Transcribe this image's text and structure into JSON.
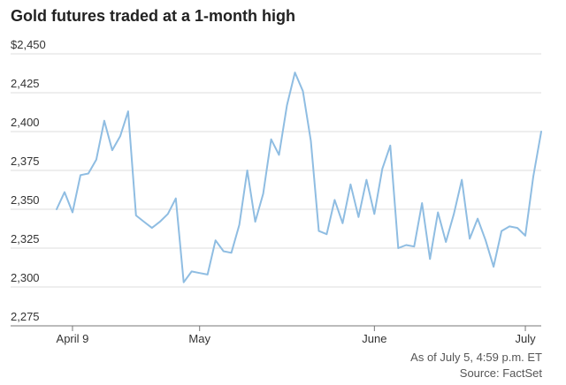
{
  "chart_data": {
    "type": "line",
    "title": "Gold futures traded at a 1-month high",
    "xlabel": "",
    "ylabel": "",
    "ylim": [
      2275,
      2450
    ],
    "yticks": [
      "$2,450",
      "2,425",
      "2,400",
      "2,375",
      "2,350",
      "2,325",
      "2,300",
      "2,275"
    ],
    "ytick_values": [
      2450,
      2425,
      2400,
      2375,
      2350,
      2325,
      2300,
      2275
    ],
    "xticks": [
      {
        "label": "April 9",
        "index": 2
      },
      {
        "label": "May",
        "index": 18
      },
      {
        "label": "June",
        "index": 40
      },
      {
        "label": "July",
        "index": 59
      }
    ],
    "grid": true,
    "series": [
      {
        "values": [
          2350,
          2361,
          2348,
          2372,
          2373,
          2382,
          2407,
          2388,
          2397,
          2413,
          2346,
          2342,
          2338,
          2342,
          2347,
          2357,
          2303,
          2310,
          2309,
          2308,
          2330,
          2323,
          2322,
          2340,
          2375,
          2342,
          2360,
          2395,
          2385,
          2417,
          2438,
          2426,
          2394,
          2336,
          2334,
          2356,
          2341,
          2366,
          2345,
          2369,
          2347,
          2376,
          2391,
          2325,
          2327,
          2326,
          2354,
          2318,
          2348,
          2329,
          2347,
          2369,
          2331,
          2344,
          2330,
          2313,
          2336,
          2339,
          2338,
          2333,
          2371,
          2400
        ]
      }
    ],
    "notes": [
      "As of July 5, 4:59 p.m. ET",
      "Source: FactSet"
    ]
  },
  "colors": {
    "line": "#8fbde2",
    "grid": "#dcdcdc",
    "text": "#222222"
  }
}
